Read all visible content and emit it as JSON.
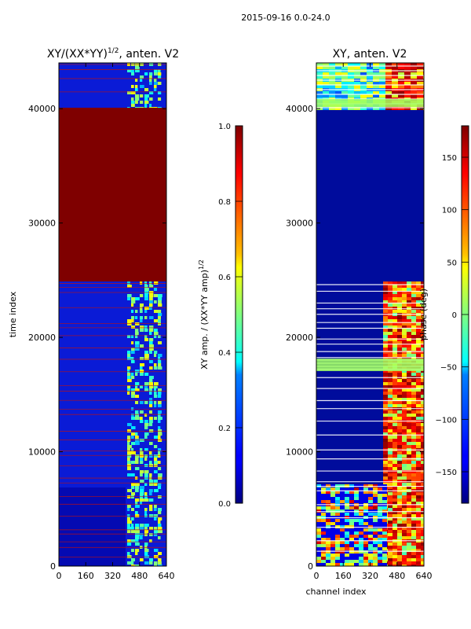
{
  "suptitle": "2015-09-16 0.0-24.0",
  "chart_data": [
    {
      "type": "heatmap",
      "title": "XY/(XX*YY)",
      "title_sup": "1/2",
      "title_suffix": ", anten. V2",
      "xlabel": "",
      "ylabel": "time index",
      "xlim": [
        0,
        640
      ],
      "ylim": [
        0,
        44000
      ],
      "xticks": [
        "0",
        "160",
        "320",
        "480",
        "640"
      ],
      "yticks": [
        "0",
        "10000",
        "20000",
        "30000",
        "40000"
      ],
      "colorbar": {
        "label": "XY amp. / (XX*YY amp)",
        "label_sup": "1/2",
        "range": [
          0.0,
          1.0
        ],
        "ticks": [
          "0.0",
          "0.2",
          "0.4",
          "0.6",
          "0.8",
          "1.0"
        ]
      },
      "regions": [
        {
          "y": [
            24800,
            40000
          ],
          "value": 1.0,
          "desc": "saturated"
        },
        {
          "y": [
            0,
            24800
          ],
          "value": 0.1,
          "desc": "low background, bright channels 400-600"
        },
        {
          "y": [
            40000,
            44000
          ],
          "value": 0.15,
          "desc": "low background, bright channels 400-600"
        }
      ]
    },
    {
      "type": "heatmap",
      "title": "XY, anten. V2",
      "xlabel": "channel index",
      "ylabel": "",
      "xlim": [
        0,
        640
      ],
      "ylim": [
        0,
        44000
      ],
      "xticks": [
        "0",
        "160",
        "320",
        "480",
        "640"
      ],
      "yticks": [
        "0",
        "10000",
        "20000",
        "30000",
        "40000"
      ],
      "colorbar": {
        "label": "phase (deg)",
        "range": [
          -180,
          180
        ],
        "ticks": [
          "150",
          "100",
          "50",
          "0",
          "−50",
          "−100",
          "−150"
        ]
      },
      "regions": [
        {
          "y": [
            24800,
            40000
          ],
          "value": -180,
          "desc": "uniform"
        },
        {
          "y": [
            10000,
            24800
          ],
          "value": -170,
          "desc": "uniform, variable channels 400-640"
        },
        {
          "y": [
            0,
            7000
          ],
          "value": 0,
          "desc": "mixed phases"
        },
        {
          "y": [
            40000,
            44000
          ],
          "value": 0,
          "desc": "mixed phases"
        }
      ]
    }
  ]
}
